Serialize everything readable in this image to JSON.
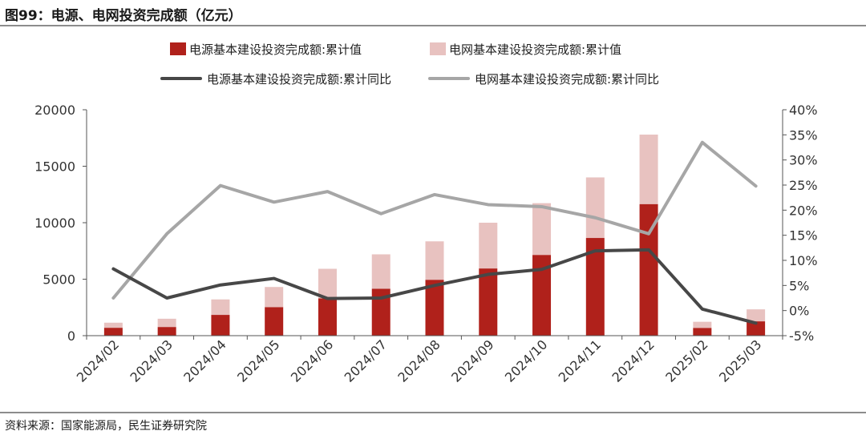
{
  "title": "图99：电源、电网投资完成额（亿元）",
  "source": "资料来源：国家能源局，民生证券研究院",
  "colors": {
    "power_bar": "#b0211b",
    "grid_bar": "#e8c2c0",
    "power_line": "#474747",
    "grid_line": "#a6a6a6"
  },
  "chart_data": {
    "type": "bar",
    "categories": [
      "2024/02",
      "2024/03",
      "2024/04",
      "2024/05",
      "2024/06",
      "2024/07",
      "2024/08",
      "2024/09",
      "2024/10",
      "2024/11",
      "2024/12",
      "2025/02",
      "2025/03"
    ],
    "series": [
      {
        "name": "电源基本建设投资完成额:累计值",
        "type": "bar",
        "axis": "left",
        "stacked": true,
        "values": [
          700,
          770,
          1840,
          2530,
          3300,
          4150,
          4950,
          5950,
          7150,
          8650,
          11650,
          690,
          1270
        ]
      },
      {
        "name": "电网基本建设投资完成额:累计值",
        "type": "bar",
        "axis": "left",
        "stacked": true,
        "values": [
          450,
          730,
          1370,
          1780,
          2620,
          3050,
          3400,
          4050,
          4580,
          5360,
          6150,
          540,
          1060
        ]
      },
      {
        "name": "电源基本建设投资完成额:累计同比",
        "type": "line",
        "axis": "right",
        "values": [
          8.3,
          2.5,
          5.1,
          6.4,
          2.4,
          2.5,
          5.0,
          7.2,
          8.2,
          11.9,
          12.1,
          0.3,
          -2.5
        ]
      },
      {
        "name": "电网基本建设投资完成额:累计同比",
        "type": "line",
        "axis": "right",
        "values": [
          2.5,
          15.3,
          24.9,
          21.6,
          23.7,
          19.3,
          23.1,
          21.1,
          20.7,
          18.5,
          15.3,
          33.5,
          24.8
        ]
      }
    ],
    "y_left": {
      "min": 0,
      "max": 20000,
      "ticks": [
        "0",
        "5000",
        "10000",
        "15000",
        "20000"
      ]
    },
    "y_right": {
      "min": -5,
      "max": 40,
      "ticks": [
        "-5%",
        "0%",
        "5%",
        "10%",
        "15%",
        "20%",
        "25%",
        "30%",
        "35%",
        "40%"
      ]
    },
    "legend_position": "top-center",
    "grid": false
  }
}
